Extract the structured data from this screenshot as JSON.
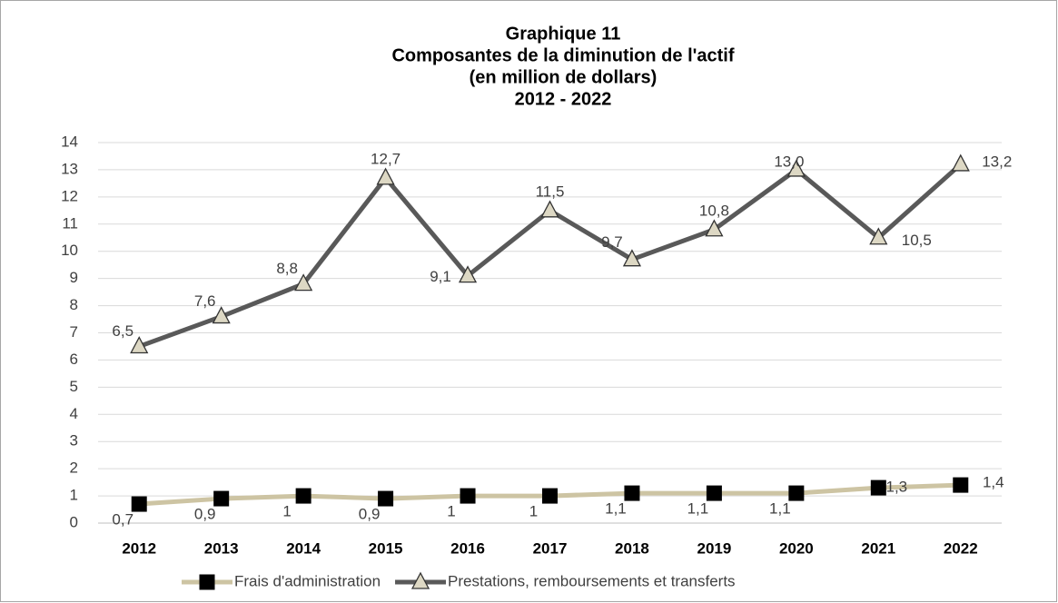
{
  "chart_data": {
    "type": "line",
    "title": [
      "Graphique 11",
      "Composantes de la diminution de l'actif",
      "(en million de dollars)",
      "2012 - 2022"
    ],
    "categories": [
      "2012",
      "2013",
      "2014",
      "2015",
      "2016",
      "2017",
      "2018",
      "2019",
      "2020",
      "2021",
      "2022"
    ],
    "series": [
      {
        "name": "Frais d'administration",
        "color": "#cdc4a3",
        "marker": "square",
        "marker_color": "#000000",
        "values": [
          0.7,
          0.9,
          1,
          0.9,
          1,
          1,
          1.1,
          1.1,
          1.1,
          1.3,
          1.4
        ],
        "value_labels": [
          "0,7",
          "0,9",
          "1",
          "0,9",
          "1",
          "1",
          "1,1",
          "1,1",
          "1,1",
          "1,3",
          "1,4"
        ]
      },
      {
        "name": "Prestations, remboursements et transferts",
        "color": "#595959",
        "marker": "triangle",
        "marker_color": "#ddd8c4",
        "values": [
          6.5,
          7.6,
          8.8,
          12.7,
          9.1,
          11.5,
          9.7,
          10.8,
          13.0,
          10.5,
          13.2
        ],
        "value_labels": [
          "6,5",
          "7,6",
          "8,8",
          "12,7",
          "9,1",
          "11,5",
          "9,7",
          "10,8",
          "13,0",
          "10,5",
          "13,2"
        ]
      }
    ],
    "ylim": [
      0,
      14
    ],
    "yticks": [
      0,
      1,
      2,
      3,
      4,
      5,
      6,
      7,
      8,
      9,
      10,
      11,
      12,
      13,
      14
    ],
    "grid": true,
    "legend": "bottom"
  }
}
